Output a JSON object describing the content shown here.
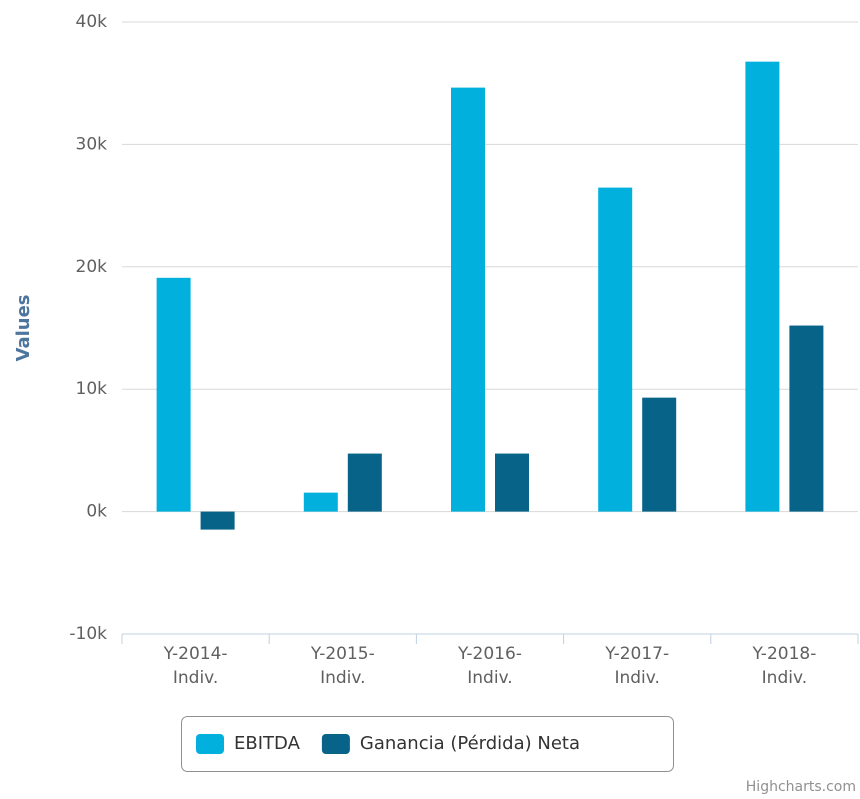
{
  "chart_data": {
    "type": "bar",
    "y_axis_label": "Values",
    "categories": [
      "Y-2014-Indiv.",
      "Y-2015-Indiv.",
      "Y-2016-Indiv.",
      "Y-2017-Indiv.",
      "Y-2018-Indiv."
    ],
    "series": [
      {
        "name": "EBITDA",
        "color": "#01b0dc",
        "values": [
          19100,
          1550,
          34640,
          26470,
          36760
        ]
      },
      {
        "name": "Ganancia (Pérdida) Neta",
        "color": "#086389",
        "values": [
          -1470,
          4740,
          4740,
          9310,
          15200
        ]
      }
    ],
    "ylim": [
      -10000,
      40000
    ],
    "yticks": [
      {
        "value": -10000,
        "label": "-10k"
      },
      {
        "value": 0,
        "label": "0k"
      },
      {
        "value": 10000,
        "label": "10k"
      },
      {
        "value": 20000,
        "label": "20k"
      },
      {
        "value": 30000,
        "label": "30k"
      },
      {
        "value": 40000,
        "label": "40k"
      }
    ],
    "grid": true,
    "legend": "bottom",
    "credit": "Highcharts.com"
  }
}
